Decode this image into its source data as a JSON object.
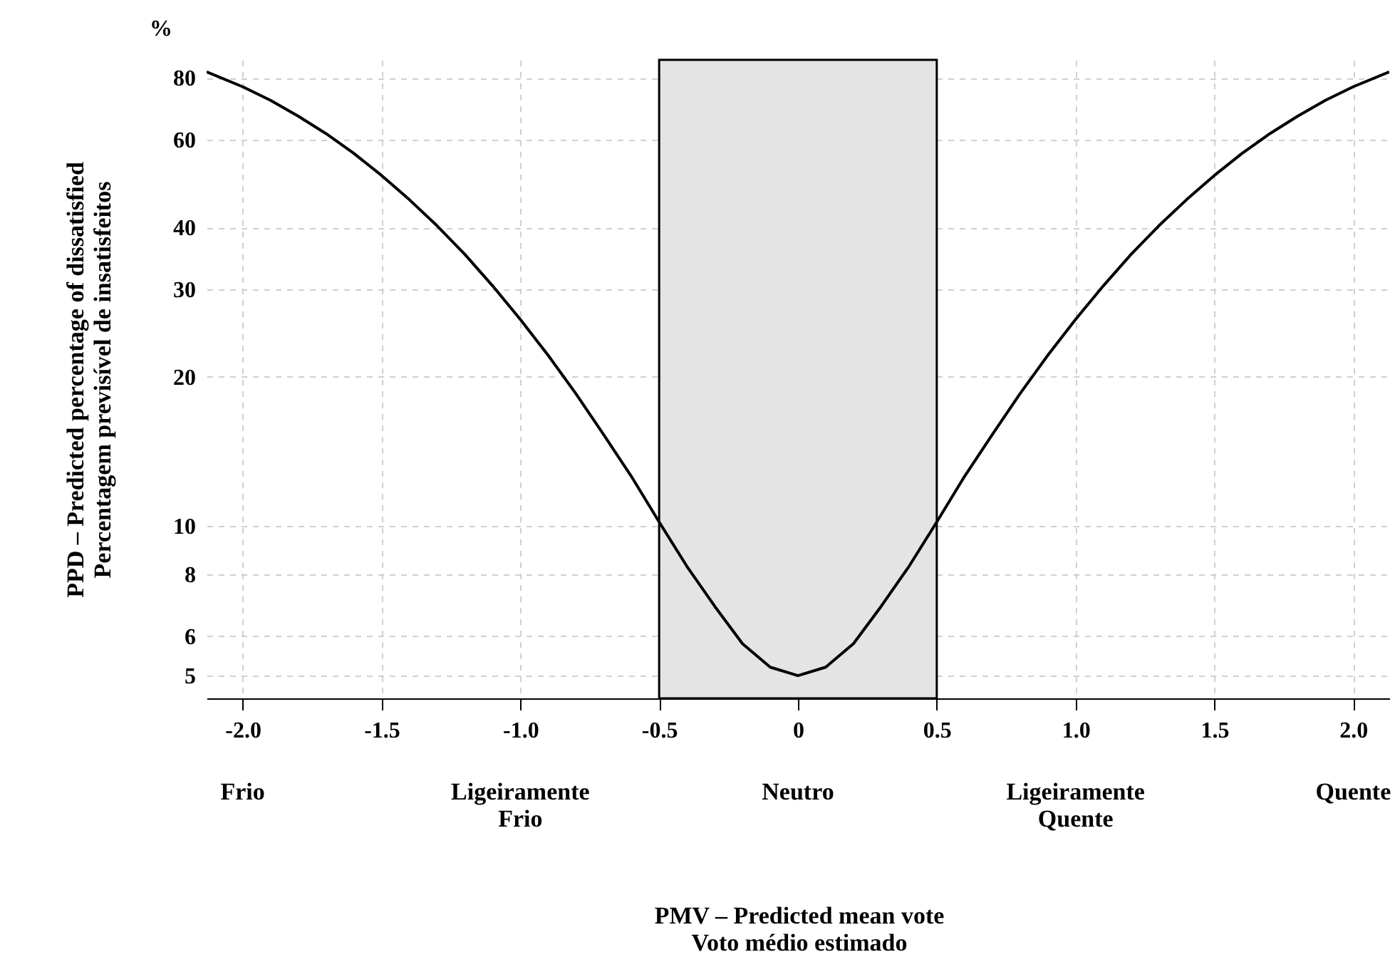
{
  "chart_data": {
    "type": "line",
    "ylabel": "PPD – Predicted percentage of dissatisfied\nPercentagem previsível de insatisfeitos",
    "x": [
      -2.13,
      -2.0,
      -1.9,
      -1.8,
      -1.7,
      -1.6,
      -1.5,
      -1.4,
      -1.3,
      -1.2,
      -1.1,
      -1.0,
      -0.9,
      -0.8,
      -0.7,
      -0.6,
      -0.5,
      -0.4,
      -0.3,
      -0.2,
      -0.1,
      0,
      0.1,
      0.2,
      0.3,
      0.4,
      0.5,
      0.6,
      0.7,
      0.8,
      0.9,
      1.0,
      1.1,
      1.2,
      1.3,
      1.4,
      1.5,
      1.6,
      1.7,
      1.8,
      1.9,
      2.0,
      2.13
    ],
    "series": [
      {
        "color": "#000000",
        "values": [
          82.3,
          76.8,
          72.1,
          67.0,
          61.8,
          56.4,
          50.9,
          45.5,
          40.3,
          35.3,
          30.5,
          26.1,
          22.1,
          18.5,
          15.3,
          12.6,
          10.2,
          8.3,
          6.9,
          5.8,
          5.2,
          5.0,
          5.2,
          5.8,
          6.9,
          8.3,
          10.2,
          12.6,
          15.3,
          18.5,
          22.1,
          26.1,
          30.5,
          35.3,
          40.3,
          45.5,
          50.9,
          56.4,
          61.8,
          67.0,
          72.1,
          76.8,
          82.3
        ]
      }
    ],
    "log": "y",
    "xlim": [
      -2.13,
      2.13
    ],
    "xticks": [
      {
        "value": -2,
        "label": "-2.0"
      },
      -1.5,
      {
        "value": -1,
        "label": "-1.0"
      },
      -0.5,
      0,
      0.5,
      {
        "value": 1,
        "label": "1.0"
      },
      1.5,
      {
        "value": 2,
        "label": "2.0"
      }
    ],
    "ylim": [
      4.5,
      87
    ],
    "yticks": [
      5,
      6,
      8,
      10,
      20,
      30,
      40,
      60,
      80
    ],
    "grid": true,
    "marker": "none",
    "line_style": "solid",
    "bands": [
      {
        "axis": "x",
        "from": -0.5,
        "to": 0.5,
        "color": "#e4e4e4"
      }
    ],
    "annotations": [
      "%",
      "Frio",
      "Ligeiramente\nFrio",
      "Neutro",
      "Ligeiramente\nQuente",
      "Quente",
      "PMV – Predicted mean vote\nVoto médio estimado"
    ]
  }
}
